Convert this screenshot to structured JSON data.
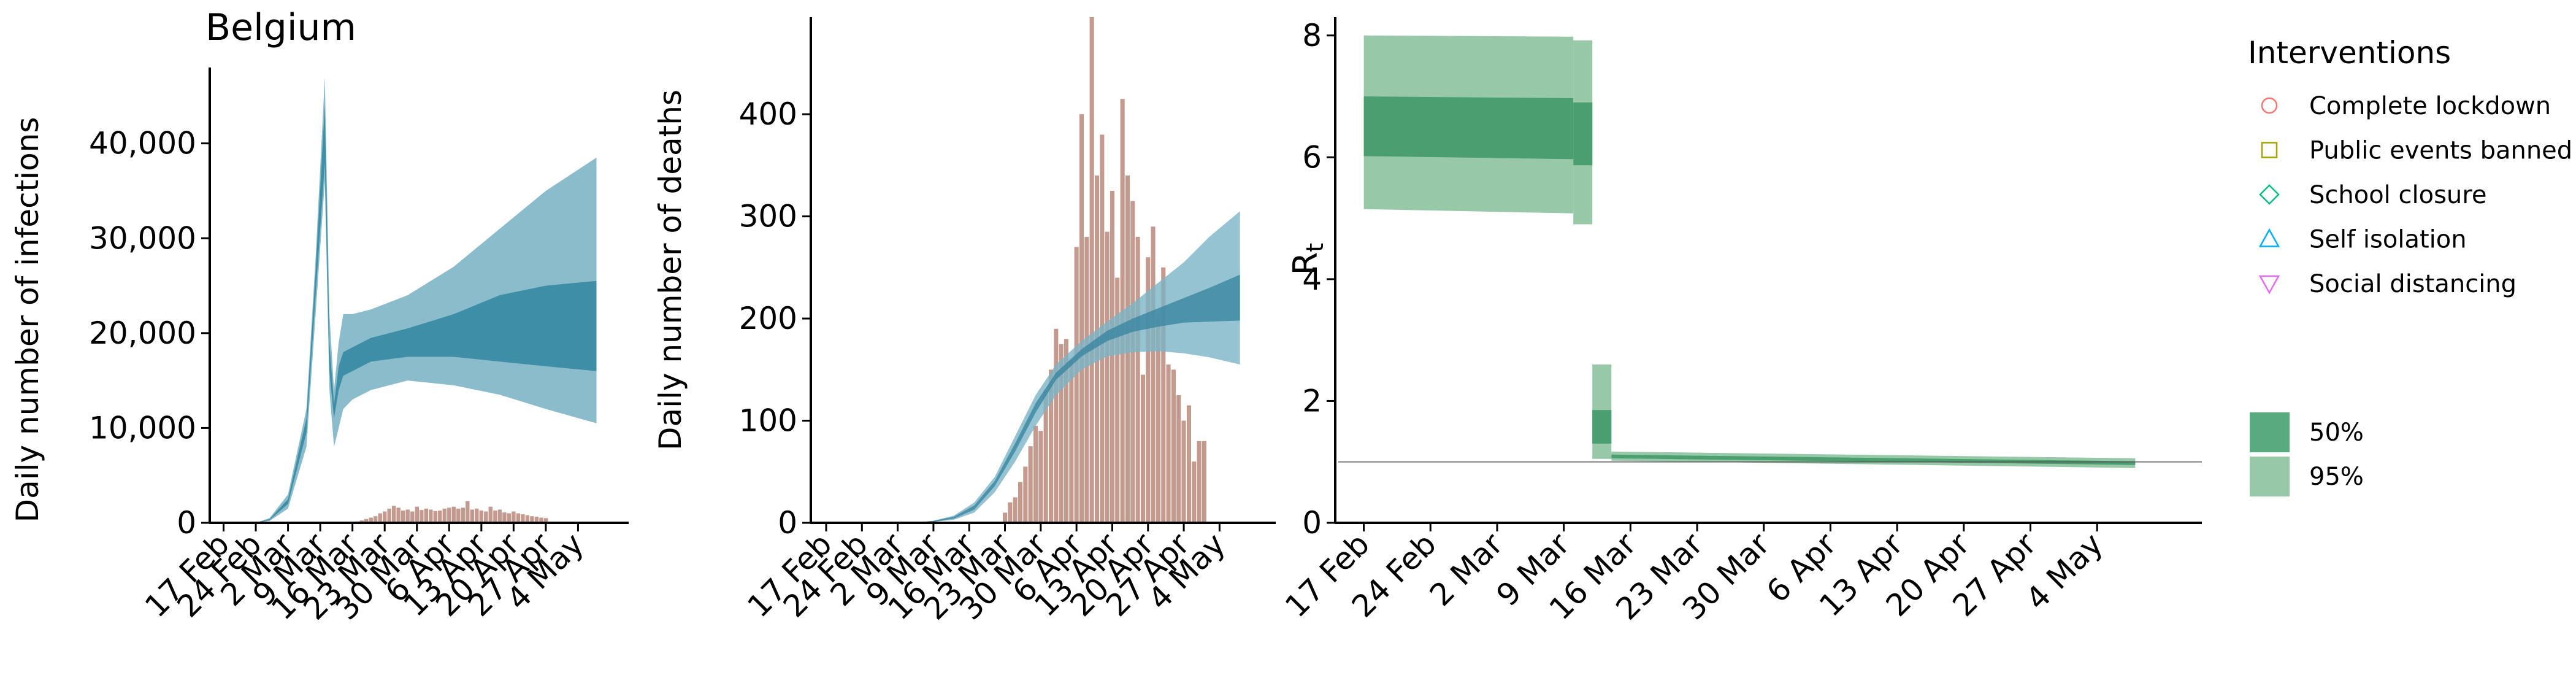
{
  "figure": {
    "legend": {
      "title": "Interventions",
      "items": [
        {
          "label": "Complete lockdown",
          "marker": "circle",
          "color": "#f8766d"
        },
        {
          "label": "Public events banned",
          "marker": "square",
          "color": "#a3a500"
        },
        {
          "label": "School closure",
          "marker": "diamond",
          "color": "#00bf7d"
        },
        {
          "label": "Self isolation",
          "marker": "triangle-up",
          "color": "#00b0f6"
        },
        {
          "label": "Social distancing",
          "marker": "triangle-down",
          "color": "#e76bf3"
        }
      ],
      "ci_items": [
        {
          "label": "50%",
          "color": "#5aaa80"
        },
        {
          "label": "95%",
          "color": "#97c8a8"
        }
      ]
    }
  },
  "chart_data": [
    {
      "type": "area",
      "title": "Belgium",
      "xlabel": "",
      "ylabel": "Daily number of infections",
      "xlim_days": [
        -3,
        88
      ],
      "ylim": [
        0,
        48000
      ],
      "yticks": [
        0,
        10000,
        20000,
        30000,
        40000
      ],
      "ytick_labels": [
        "0",
        "10,000",
        "20,000",
        "30,000",
        "40,000"
      ],
      "xticks_days": [
        0,
        7,
        14,
        21,
        28,
        35,
        42,
        49,
        56,
        63,
        70,
        77
      ],
      "xtick_labels": [
        "17 Feb",
        "24 Feb",
        "2 Mar",
        "9 Mar",
        "16 Mar",
        "23 Mar",
        "30 Mar",
        "6 Apr",
        "13 Apr",
        "20 Apr",
        "27 Apr",
        "4 May"
      ],
      "bands": {
        "colors": {
          "ci95": "#8bbccb",
          "ci50": "#3f8ea8"
        },
        "x_days": [
          7,
          10,
          14,
          18,
          20,
          22,
          23,
          24,
          25,
          26,
          28,
          32,
          40,
          50,
          60,
          70,
          81
        ],
        "ci95_low": [
          0,
          200,
          1500,
          8000,
          22000,
          36000,
          14000,
          8000,
          10000,
          12000,
          13000,
          14000,
          15000,
          14500,
          13500,
          12000,
          10500
        ],
        "ci95_high": [
          0,
          500,
          3000,
          12000,
          28000,
          47000,
          22000,
          14000,
          19000,
          22000,
          22000,
          22500,
          24000,
          27000,
          31000,
          35000,
          38500
        ],
        "ci50_low": [
          0,
          300,
          2000,
          9500,
          24000,
          38000,
          16000,
          11000,
          14000,
          15500,
          16000,
          17000,
          17500,
          17500,
          17000,
          16500,
          16000
        ],
        "ci50_high": [
          0,
          400,
          2500,
          11000,
          26500,
          44000,
          19000,
          12500,
          16500,
          18000,
          18500,
          19500,
          20500,
          22000,
          24000,
          25000,
          25500
        ]
      },
      "bars": {
        "color": "#c49a8f",
        "start_day": 29,
        "values": [
          150,
          250,
          400,
          550,
          700,
          1000,
          1200,
          1500,
          1800,
          1600,
          1300,
          1400,
          1200,
          1700,
          1350,
          1500,
          1400,
          1250,
          1300,
          1500,
          1600,
          1700,
          1500,
          1600,
          2300,
          1400,
          1500,
          1300,
          1200,
          1700,
          1300,
          1400,
          1100,
          1000,
          1200,
          1000,
          900,
          800,
          700,
          650,
          550,
          500
        ]
      }
    },
    {
      "type": "area",
      "title": "",
      "xlabel": "",
      "ylabel": "Daily number of deaths",
      "xlim_days": [
        -3,
        88
      ],
      "ylim": [
        0,
        495
      ],
      "yticks": [
        0,
        100,
        200,
        300,
        400
      ],
      "ytick_labels": [
        "0",
        "100",
        "200",
        "300",
        "400"
      ],
      "xticks_days": [
        0,
        7,
        14,
        21,
        28,
        35,
        42,
        49,
        56,
        63,
        70,
        77
      ],
      "xtick_labels": [
        "17 Feb",
        "24 Feb",
        "2 Mar",
        "9 Mar",
        "16 Mar",
        "23 Mar",
        "30 Mar",
        "6 Apr",
        "13 Apr",
        "20 Apr",
        "27 Apr",
        "4 May"
      ],
      "bands": {
        "colors": {
          "ci95": "#7cb4c6",
          "ci50": "#3a86a0"
        },
        "x_days": [
          17,
          21,
          25,
          29,
          33,
          37,
          41,
          45,
          50,
          55,
          60,
          65,
          70,
          75,
          81
        ],
        "ci95_low": [
          0,
          1,
          3,
          10,
          30,
          60,
          95,
          125,
          150,
          163,
          167,
          168,
          166,
          162,
          155
        ],
        "ci95_high": [
          0,
          2,
          7,
          20,
          45,
          85,
          125,
          155,
          178,
          197,
          215,
          235,
          255,
          280,
          305
        ],
        "ci50_low": [
          0,
          1,
          4,
          13,
          36,
          70,
          108,
          140,
          163,
          178,
          187,
          192,
          196,
          197,
          198
        ],
        "ci50_high": [
          0,
          2,
          6,
          17,
          41,
          78,
          117,
          147,
          170,
          188,
          200,
          210,
          220,
          230,
          243
        ]
      },
      "bars": {
        "color": "#c49a8f",
        "start_day": 35,
        "values": [
          10,
          20,
          25,
          40,
          55,
          75,
          95,
          90,
          130,
          150,
          190,
          175,
          180,
          160,
          270,
          400,
          280,
          495,
          340,
          380,
          285,
          325,
          240,
          415,
          340,
          315,
          280,
          145,
          260,
          290,
          200,
          250,
          155,
          150,
          125,
          100,
          115,
          60,
          80,
          80
        ]
      }
    },
    {
      "type": "area",
      "title": "",
      "xlabel": "",
      "ylabel": "R",
      "ylabel_subscript": "t",
      "xlim_days": [
        -3,
        88
      ],
      "ylim": [
        0,
        8.3
      ],
      "yticks": [
        0,
        2,
        4,
        6,
        8
      ],
      "ytick_labels": [
        "0",
        "2",
        "4",
        "6",
        "8"
      ],
      "xticks_days": [
        0,
        7,
        14,
        21,
        28,
        35,
        42,
        49,
        56,
        63,
        70,
        77
      ],
      "xtick_labels": [
        "17 Feb",
        "24 Feb",
        "2 Mar",
        "9 Mar",
        "16 Mar",
        "23 Mar",
        "30 Mar",
        "6 Apr",
        "13 Apr",
        "20 Apr",
        "27 Apr",
        "4 May"
      ],
      "reference_line": 1,
      "bands": {
        "colors": {
          "ci95": "#97c8a8",
          "ci50": "#4a9e70"
        },
        "segments": [
          {
            "x_days": [
              0,
              22
            ],
            "ci95_low": [
              5.15,
              5.08
            ],
            "ci95_high": [
              8.0,
              7.98
            ],
            "ci50_low": [
              6.02,
              5.97
            ],
            "ci50_high": [
              7.0,
              6.97
            ]
          },
          {
            "x_days": [
              22,
              24
            ],
            "ci95_low": [
              4.9,
              4.9
            ],
            "ci95_high": [
              7.92,
              7.92
            ],
            "ci50_low": [
              5.87,
              5.87
            ],
            "ci50_high": [
              6.9,
              6.9
            ]
          },
          {
            "x_days": [
              24,
              26
            ],
            "ci95_low": [
              1.05,
              1.05
            ],
            "ci95_high": [
              2.6,
              2.6
            ],
            "ci50_low": [
              1.3,
              1.3
            ],
            "ci50_high": [
              1.85,
              1.85
            ]
          },
          {
            "x_days": [
              26,
              81
            ],
            "ci95_low": [
              1.02,
              0.9
            ],
            "ci95_high": [
              1.17,
              1.06
            ],
            "ci50_low": [
              1.06,
              0.95
            ],
            "ci50_high": [
              1.12,
              1.01
            ]
          }
        ]
      }
    }
  ]
}
